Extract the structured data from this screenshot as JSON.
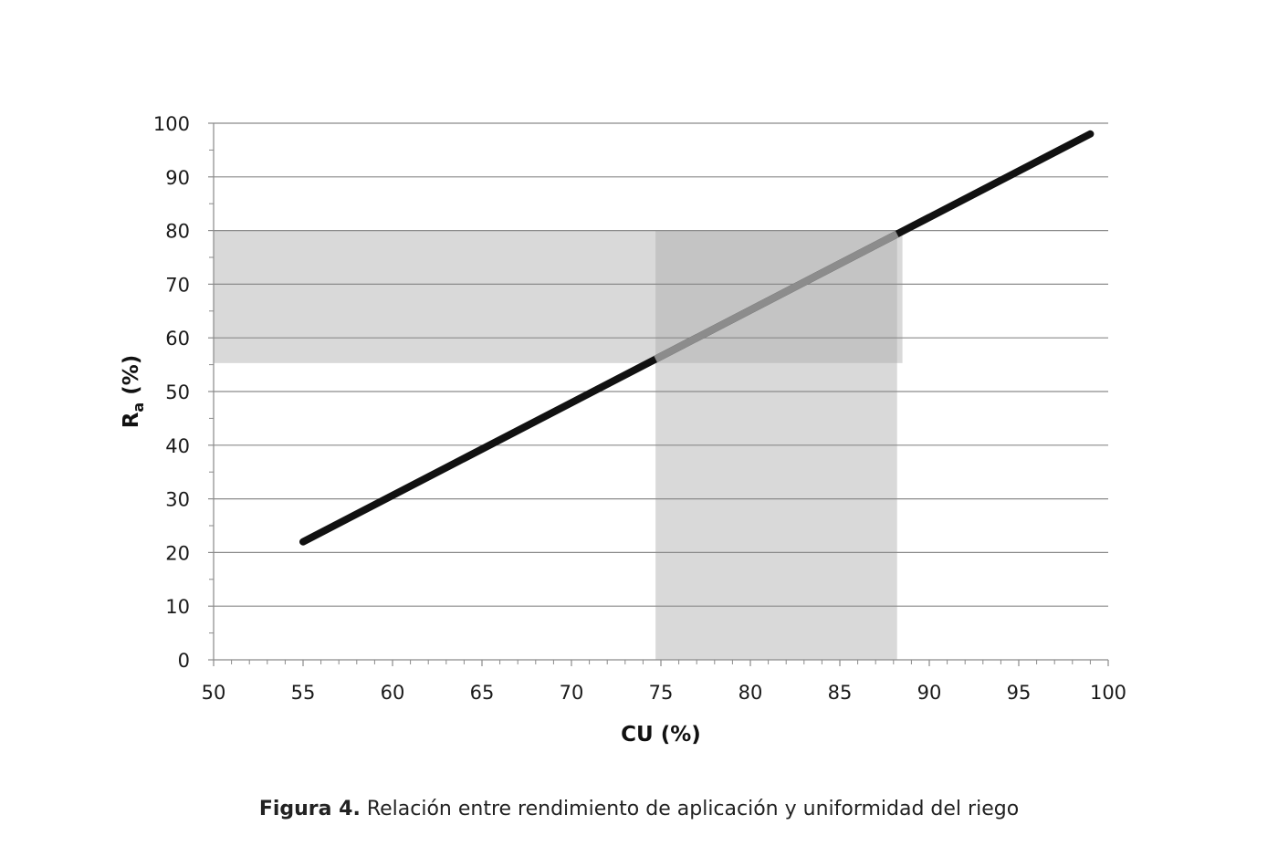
{
  "chart_data": {
    "type": "line",
    "xlabel": "CU (%)",
    "ylabel_main": "R",
    "ylabel_sub": "a",
    "ylabel_tail": " (%)",
    "xlim": [
      50,
      100
    ],
    "ylim": [
      0,
      100
    ],
    "x_ticks": [
      "50",
      "55",
      "60",
      "65",
      "70",
      "75",
      "80",
      "85",
      "90",
      "95",
      "100"
    ],
    "y_ticks": [
      "0",
      "10",
      "20",
      "30",
      "40",
      "50",
      "60",
      "70",
      "80",
      "90",
      "100"
    ],
    "grid": "horizontal",
    "series": [
      {
        "x": [
          55,
          99
        ],
        "y": [
          22,
          98
        ]
      }
    ],
    "shaded_regions": [
      {
        "orientation": "horizontal",
        "x": [
          50,
          88.5
        ],
        "y": [
          55.3,
          80
        ]
      },
      {
        "orientation": "vertical",
        "x": [
          74.7,
          88.2
        ],
        "y": [
          0,
          80
        ]
      }
    ],
    "colors": {
      "line": "#111111",
      "line_in_overlap": "#8c8c8c",
      "band": "#d9d9d9",
      "band_overlap": "#c4c4c4",
      "grid": "#8a8a8a"
    }
  },
  "caption": {
    "label": "Figura 4.",
    "text": " Relación entre rendimiento de aplicación y uniformidad del riego"
  }
}
